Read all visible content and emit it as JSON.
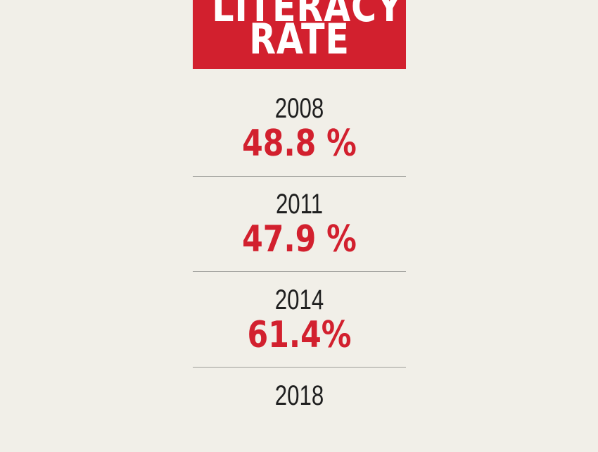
{
  "chart_data": {
    "type": "table",
    "title_lines": [
      "LITERACY",
      "RATE"
    ],
    "entries": [
      {
        "year": "2008",
        "label": "48.8 %",
        "value": 48.8
      },
      {
        "year": "2011",
        "label": "47.9 %",
        "value": 47.9
      },
      {
        "year": "2014",
        "label": "61.4%",
        "value": 61.4
      },
      {
        "year": "2018",
        "label": "",
        "value": null
      }
    ]
  },
  "colors": {
    "background": "#f1efe8",
    "accent": "#d2202e",
    "text": "#1f1f1f",
    "divider": "#9e9e9a"
  }
}
